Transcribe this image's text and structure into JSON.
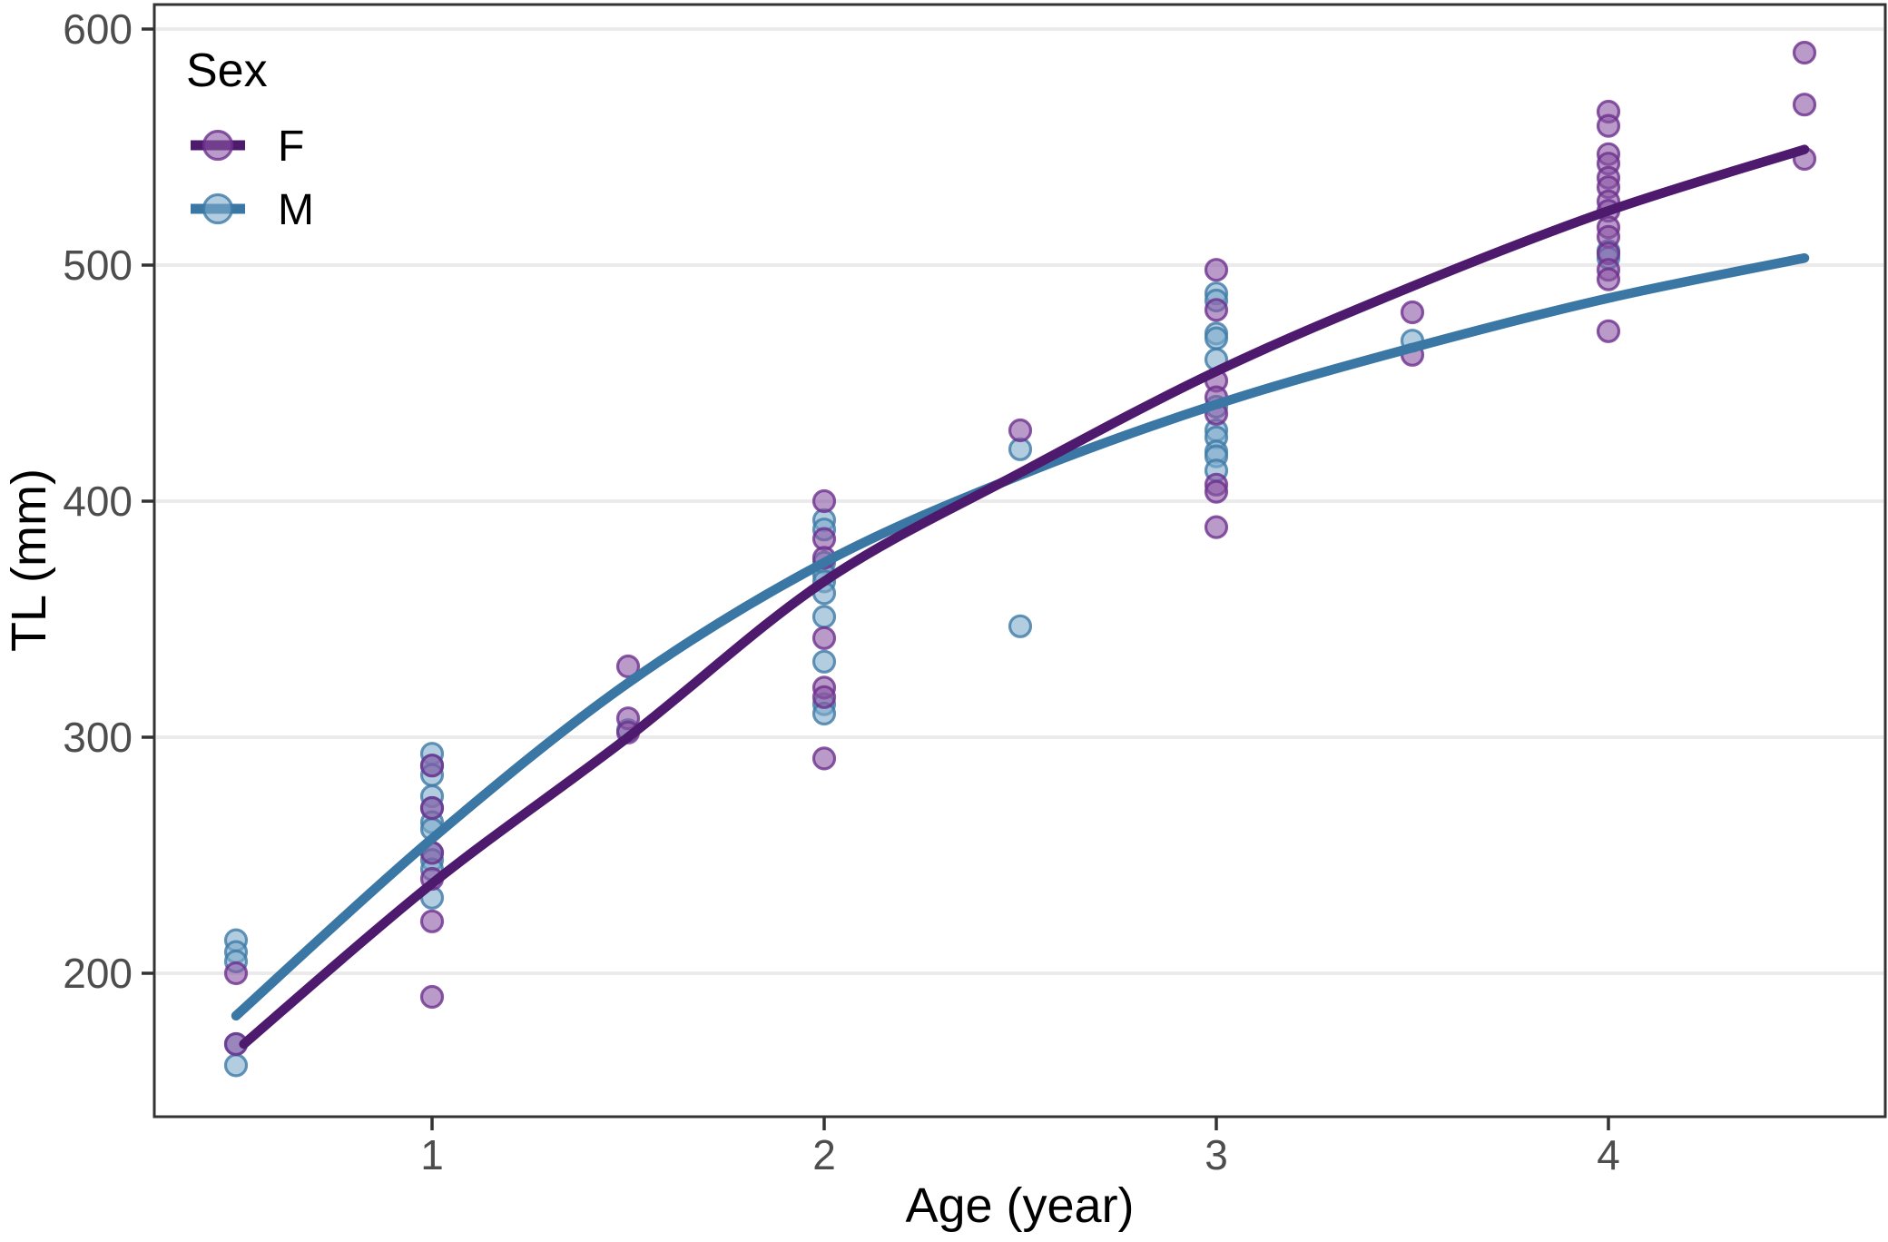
{
  "chart_data": {
    "type": "scatter",
    "title": "",
    "xlabel": "Age (year)",
    "ylabel": "TL (mm)",
    "xlim": [
      0.29,
      4.71
    ],
    "ylim": [
      139,
      610
    ],
    "x_ticks": [
      1,
      2,
      3,
      4
    ],
    "y_ticks": [
      200,
      300,
      400,
      500,
      600
    ],
    "grid": "horizontal-major-only",
    "legend": {
      "title": "Sex",
      "position": "inside-top-left",
      "entries": [
        {
          "label": "F"
        },
        {
          "label": "M"
        }
      ]
    },
    "colors": {
      "F_line": "#4e1a6e",
      "F_point_fill": "#8a56a3",
      "F_point_stroke": "#6d2f8e",
      "M_line": "#3b77a4",
      "M_point_fill": "#7fabcc",
      "M_point_stroke": "#3d7aa6",
      "gridline": "#ebebeb",
      "panel_border": "#333333",
      "tick": "#333333",
      "tick_label": "#4d4d4d",
      "axis_title": "#000000",
      "background": "#ffffff"
    },
    "series": [
      {
        "name": "F",
        "points": [
          [
            0.5,
            200
          ],
          [
            0.5,
            170
          ],
          [
            1,
            288
          ],
          [
            1,
            270
          ],
          [
            1,
            251
          ],
          [
            1,
            240
          ],
          [
            1,
            222
          ],
          [
            1,
            190
          ],
          [
            1.5,
            330
          ],
          [
            1.5,
            308
          ],
          [
            1.5,
            302
          ],
          [
            2,
            400
          ],
          [
            2,
            384
          ],
          [
            2,
            376
          ],
          [
            2,
            342
          ],
          [
            2,
            321
          ],
          [
            2,
            317
          ],
          [
            2,
            291
          ],
          [
            2.5,
            430
          ],
          [
            3,
            498
          ],
          [
            3,
            481
          ],
          [
            3,
            451
          ],
          [
            3,
            444
          ],
          [
            3,
            437
          ],
          [
            3,
            407
          ],
          [
            3,
            404
          ],
          [
            3,
            389
          ],
          [
            3.5,
            480
          ],
          [
            3.5,
            462
          ],
          [
            4,
            565
          ],
          [
            4,
            559
          ],
          [
            4,
            547
          ],
          [
            4,
            543
          ],
          [
            4,
            537
          ],
          [
            4,
            533
          ],
          [
            4,
            527
          ],
          [
            4,
            523
          ],
          [
            4,
            516
          ],
          [
            4,
            512
          ],
          [
            4,
            505
          ],
          [
            4,
            498
          ],
          [
            4,
            494
          ],
          [
            4,
            472
          ],
          [
            4.5,
            590
          ],
          [
            4.5,
            568
          ],
          [
            4.5,
            545
          ]
        ]
      },
      {
        "name": "M",
        "points": [
          [
            0.5,
            214
          ],
          [
            0.5,
            209
          ],
          [
            0.5,
            205
          ],
          [
            0.5,
            170
          ],
          [
            0.5,
            161
          ],
          [
            1,
            293
          ],
          [
            1,
            288
          ],
          [
            1,
            284
          ],
          [
            1,
            275
          ],
          [
            1,
            270
          ],
          [
            1,
            264
          ],
          [
            1,
            261
          ],
          [
            1,
            251
          ],
          [
            1,
            248
          ],
          [
            1,
            244
          ],
          [
            1,
            232
          ],
          [
            1.5,
            303
          ],
          [
            2,
            392
          ],
          [
            2,
            388
          ],
          [
            2,
            374
          ],
          [
            2,
            369
          ],
          [
            2,
            366
          ],
          [
            2,
            361
          ],
          [
            2,
            351
          ],
          [
            2,
            332
          ],
          [
            2,
            314
          ],
          [
            2,
            310
          ],
          [
            2.5,
            422
          ],
          [
            2.5,
            347
          ],
          [
            3,
            488
          ],
          [
            3,
            485
          ],
          [
            3,
            471
          ],
          [
            3,
            469
          ],
          [
            3,
            460
          ],
          [
            3,
            440
          ],
          [
            3,
            430
          ],
          [
            3,
            427
          ],
          [
            3,
            421
          ],
          [
            3,
            419
          ],
          [
            3,
            413
          ],
          [
            3.5,
            468
          ],
          [
            4,
            506
          ],
          [
            4,
            503
          ]
        ]
      }
    ],
    "fit_curves": [
      {
        "name": "F",
        "points": [
          [
            0.52,
            170
          ],
          [
            1,
            238
          ],
          [
            1.5,
            300
          ],
          [
            2,
            366
          ],
          [
            2.5,
            412
          ],
          [
            3,
            455
          ],
          [
            3.5,
            491
          ],
          [
            4,
            523
          ],
          [
            4.5,
            549
          ]
        ]
      },
      {
        "name": "M",
        "points": [
          [
            0.5,
            182
          ],
          [
            1,
            257
          ],
          [
            1.5,
            323
          ],
          [
            2,
            374
          ],
          [
            2.5,
            411
          ],
          [
            3,
            441
          ],
          [
            3.5,
            465
          ],
          [
            4,
            486
          ],
          [
            4.5,
            503
          ]
        ]
      }
    ]
  }
}
